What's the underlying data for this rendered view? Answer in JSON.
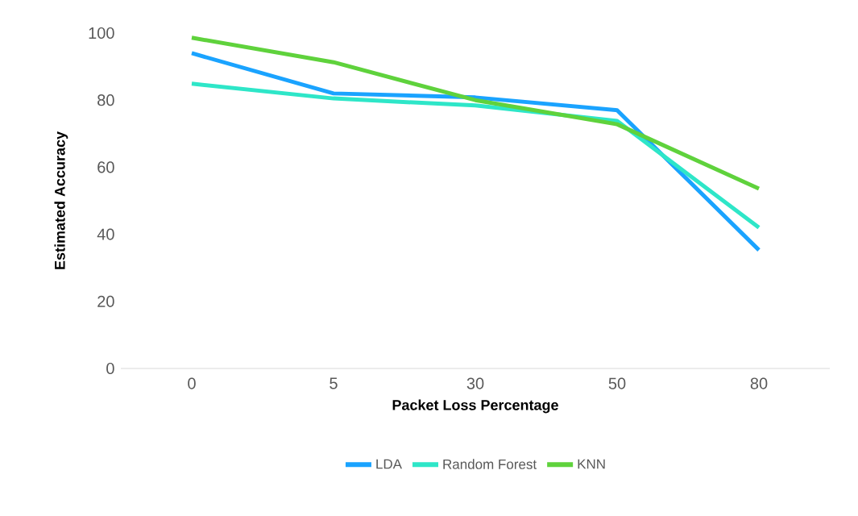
{
  "chart_data": {
    "type": "line",
    "xlabel": "Packet Loss Percentage",
    "ylabel": "Estimated Accuracy",
    "categories": [
      "0",
      "5",
      "30",
      "50",
      "80"
    ],
    "ylim": [
      0,
      100
    ],
    "yticks": [
      0,
      20,
      40,
      60,
      80,
      100
    ],
    "legend": "bottom",
    "marker": "none",
    "line_style": "solid",
    "series": [
      {
        "name": "LDA",
        "color": "#1aa3ff",
        "values": [
          94,
          82,
          80.8,
          77,
          35.3
        ]
      },
      {
        "name": "Random Forest",
        "color": "#2ee6c8",
        "values": [
          84.9,
          80.5,
          78.4,
          73.8,
          42
        ]
      },
      {
        "name": "KNN",
        "color": "#5fd23c",
        "values": [
          98.6,
          91.3,
          80,
          72.8,
          53.6
        ]
      }
    ]
  }
}
